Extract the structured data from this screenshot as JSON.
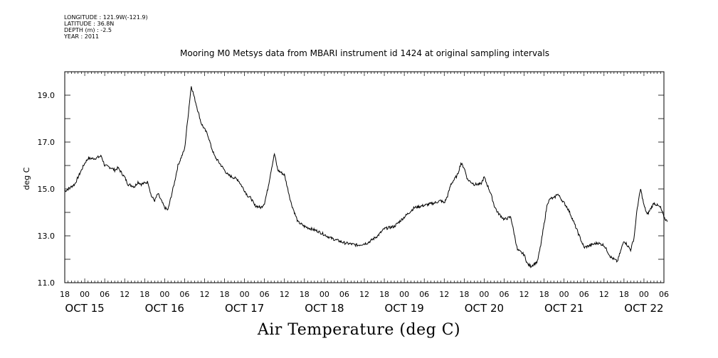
{
  "meta": {
    "longitude": "LONGITUDE : 121.9W(-121.9)",
    "latitude": "LATITUDE : 36.8N",
    "depth": "DEPTH (m) : -2.5",
    "year": "YEAR : 2011"
  },
  "chart_data": {
    "type": "line",
    "title": "Mooring M0 Metsys data from MBARI instrument id 1424 at original sampling intervals",
    "xlabel": "Air Temperature (deg C)",
    "ylabel": "deg C",
    "ylim": [
      11.0,
      20.0
    ],
    "xlim_hours_from_oct15_00": [
      -6,
      174
    ],
    "yticks": [
      "11.0",
      "13.0",
      "15.0",
      "17.0",
      "19.0"
    ],
    "ytick_values": [
      11.0,
      13.0,
      15.0,
      17.0,
      19.0
    ],
    "xtick_hour_labels": [
      "18",
      "00",
      "06",
      "12",
      "18",
      "00",
      "06",
      "12",
      "18",
      "00",
      "06",
      "12",
      "18",
      "00",
      "06",
      "12",
      "18",
      "00",
      "06",
      "12",
      "18",
      "00",
      "06",
      "12",
      "18",
      "00",
      "06",
      "12",
      "18",
      "00",
      "06"
    ],
    "date_labels": [
      "OCT 15",
      "OCT 16",
      "OCT 17",
      "OCT 18",
      "OCT 19",
      "OCT 20",
      "OCT 21",
      "OCT 22"
    ],
    "grid": false,
    "series": [
      {
        "x": [
          "2011-10-14 18:00",
          "2011-10-14 21:00",
          "2011-10-15 00:00",
          "2011-10-15 01:00",
          "2011-10-15 03:00",
          "2011-10-15 05:00",
          "2011-10-15 06:00",
          "2011-10-15 08:00",
          "2011-10-15 09:00",
          "2011-10-15 10:00",
          "2011-10-15 12:00",
          "2011-10-15 13:00",
          "2011-10-15 15:00",
          "2011-10-15 16:00",
          "2011-10-15 17:00",
          "2011-10-15 19:00",
          "2011-10-15 20:00",
          "2011-10-15 21:00",
          "2011-10-15 22:00",
          "2011-10-16 00:00",
          "2011-10-16 01:00",
          "2011-10-16 02:00",
          "2011-10-16 03:00",
          "2011-10-16 04:00",
          "2011-10-16 06:00",
          "2011-10-16 08:00",
          "2011-10-16 11:00",
          "2011-10-16 13:00",
          "2011-10-16 14:00",
          "2011-10-16 15:00",
          "2011-10-16 17:00",
          "2011-10-16 19:00",
          "2011-10-16 22:00",
          "2011-10-17 01:00",
          "2011-10-17 02:00",
          "2011-10-17 03:00",
          "2011-10-17 05:00",
          "2011-10-17 06:00",
          "2011-10-17 07:00",
          "2011-10-17 08:00",
          "2011-10-17 09:00",
          "2011-10-17 10:00",
          "2011-10-17 12:00",
          "2011-10-17 14:00",
          "2011-10-17 16:00",
          "2011-10-17 18:00",
          "2011-10-17 20:00",
          "2011-10-17 22:00",
          "2011-10-18 02:00",
          "2011-10-18 06:00",
          "2011-10-18 10:00",
          "2011-10-18 13:00",
          "2011-10-18 16:00",
          "2011-10-18 18:00",
          "2011-10-18 21:00",
          "2011-10-19 00:00",
          "2011-10-19 03:00",
          "2011-10-19 06:00",
          "2011-10-19 09:00",
          "2011-10-19 11:00",
          "2011-10-19 12:00",
          "2011-10-19 13:00",
          "2011-10-19 14:00",
          "2011-10-19 16:00",
          "2011-10-19 17:00",
          "2011-10-19 18:00",
          "2011-10-19 19:00",
          "2011-10-19 21:00",
          "2011-10-19 23:00",
          "2011-10-20 00:00",
          "2011-10-20 02:00",
          "2011-10-20 03:00",
          "2011-10-20 04:00",
          "2011-10-20 06:00",
          "2011-10-20 08:00",
          "2011-10-20 10:00",
          "2011-10-20 11:00",
          "2011-10-20 12:00",
          "2011-10-20 13:00",
          "2011-10-20 14:00",
          "2011-10-20 15:00",
          "2011-10-20 16:00",
          "2011-10-20 17:00",
          "2011-10-20 18:00",
          "2011-10-20 19:00",
          "2011-10-20 20:00",
          "2011-10-20 21:00",
          "2011-10-20 22:00",
          "2011-10-21 00:00",
          "2011-10-21 01:00",
          "2011-10-21 02:00",
          "2011-10-21 04:00",
          "2011-10-21 06:00",
          "2011-10-21 08:00",
          "2011-10-21 10:00",
          "2011-10-21 12:00",
          "2011-10-21 14:00",
          "2011-10-21 16:00",
          "2011-10-21 18:00",
          "2011-10-21 20:00",
          "2011-10-21 21:00",
          "2011-10-21 22:00",
          "2011-10-21 23:00",
          "2011-10-22 00:00",
          "2011-10-22 01:00",
          "2011-10-22 03:00",
          "2011-10-22 05:00",
          "2011-10-22 06:00",
          "2011-10-22 07:00"
        ],
        "y": [
          14.9,
          15.2,
          16.1,
          16.3,
          16.3,
          16.4,
          16.0,
          15.9,
          15.8,
          15.9,
          15.5,
          15.2,
          15.1,
          15.3,
          15.2,
          15.3,
          14.7,
          14.5,
          14.8,
          14.2,
          14.1,
          14.7,
          15.3,
          16.0,
          16.7,
          19.4,
          17.8,
          17.3,
          16.8,
          16.4,
          16.0,
          15.6,
          15.4,
          14.7,
          14.6,
          14.3,
          14.2,
          14.4,
          15.0,
          15.8,
          16.5,
          15.8,
          15.6,
          14.4,
          13.6,
          13.4,
          13.3,
          13.2,
          12.9,
          12.7,
          12.6,
          12.7,
          13.0,
          13.3,
          13.4,
          13.8,
          14.2,
          14.3,
          14.4,
          14.5,
          14.4,
          14.7,
          15.2,
          15.6,
          16.1,
          15.9,
          15.4,
          15.2,
          15.2,
          15.5,
          14.8,
          14.3,
          14.0,
          13.7,
          13.8,
          12.4,
          12.3,
          12.2,
          11.8,
          11.7,
          11.8,
          11.9,
          12.6,
          13.5,
          14.4,
          14.6,
          14.6,
          14.8,
          14.4,
          14.2,
          13.9,
          13.2,
          12.5,
          12.6,
          12.7,
          12.6,
          12.1,
          11.9,
          12.8,
          12.4,
          12.9,
          14.2,
          15.0,
          14.3,
          13.9,
          14.4,
          14.2,
          13.8,
          13.6
        ]
      }
    ]
  }
}
